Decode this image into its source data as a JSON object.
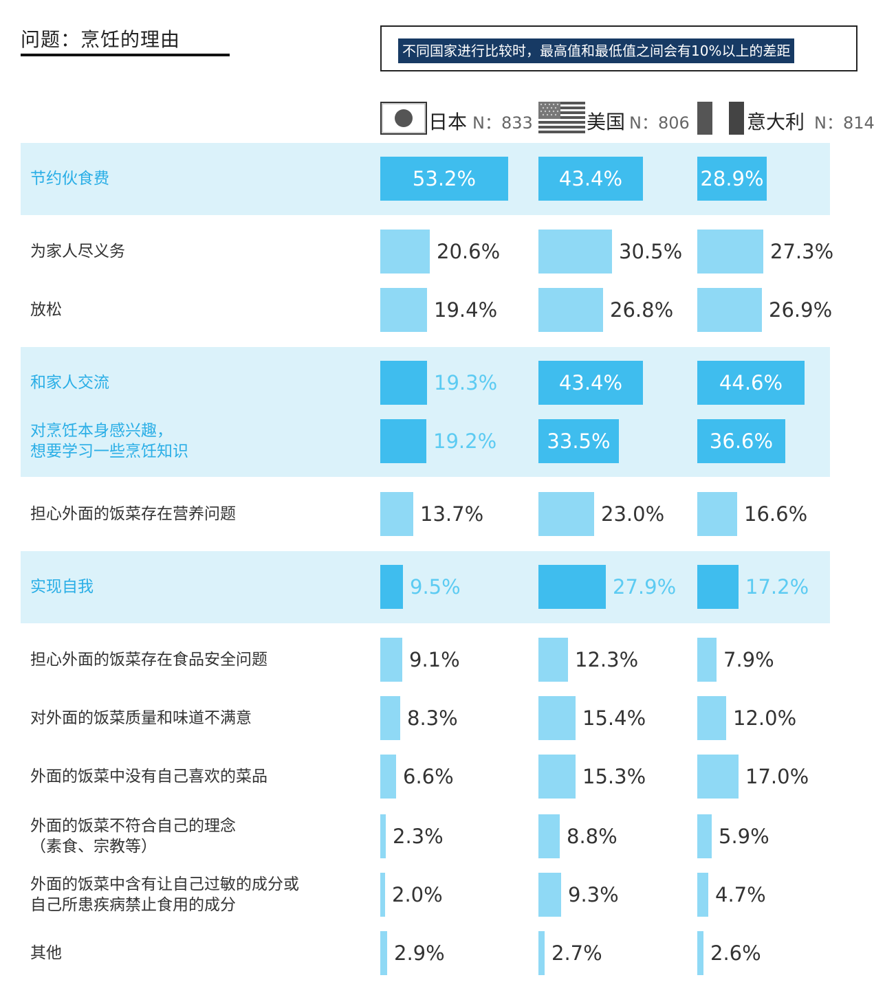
{
  "title": "问题：烹饪的理由",
  "note": "不同国家进行比较时，最高值和最低值之间会有10%以上的差距",
  "colors": {
    "highlight_band": "#dbf2fa",
    "bar_normal": "#8fd9f5",
    "bar_highlight": "#3fbdee",
    "note_bg": "#173a64",
    "highlight_text": "#2aaee6"
  },
  "legend": [
    {
      "name": "日本",
      "n": "N：833",
      "flag_icon": "japan-flag-icon"
    },
    {
      "name": "美国",
      "n": "N：806",
      "flag_icon": "usa-flag-icon"
    },
    {
      "name": "意大利",
      "n": "N：814",
      "flag_icon": "italy-flag-icon"
    }
  ],
  "chart_data": {
    "type": "bar",
    "orientation": "horizontal",
    "title": "问题：烹饪的理由",
    "unit": "%",
    "series_names": [
      "日本",
      "美国",
      "意大利"
    ],
    "rows": [
      {
        "label": "节约伙食费",
        "highlight": true,
        "values": [
          53.2,
          43.4,
          28.9
        ],
        "value_labels": [
          "53.2%",
          "43.4%",
          "28.9%"
        ]
      },
      {
        "label": "为家人尽义务",
        "highlight": false,
        "values": [
          20.6,
          30.5,
          27.3
        ],
        "value_labels": [
          "20.6%",
          "30.5%",
          "27.3%"
        ]
      },
      {
        "label": "放松",
        "highlight": false,
        "values": [
          19.4,
          26.8,
          26.9
        ],
        "value_labels": [
          "19.4%",
          "26.8%",
          "26.9%"
        ]
      },
      {
        "label": "和家人交流",
        "highlight": true,
        "values": [
          19.3,
          43.4,
          44.6
        ],
        "value_labels": [
          "19.3%",
          "43.4%",
          "44.6%"
        ]
      },
      {
        "label": "对烹饪本身感兴趣，\n想要学习一些烹饪知识",
        "highlight": true,
        "values": [
          19.2,
          33.5,
          36.6
        ],
        "value_labels": [
          "19.2%",
          "33.5%",
          "36.6%"
        ]
      },
      {
        "label": "担心外面的饭菜存在营养问题",
        "highlight": false,
        "values": [
          13.7,
          23.0,
          16.6
        ],
        "value_labels": [
          "13.7%",
          "23.0%",
          "16.6%"
        ]
      },
      {
        "label": "实现自我",
        "highlight": true,
        "values": [
          9.5,
          27.9,
          17.2
        ],
        "value_labels": [
          "9.5%",
          "27.9%",
          "17.2%"
        ]
      },
      {
        "label": "担心外面的饭菜存在食品安全问题",
        "highlight": false,
        "values": [
          9.1,
          12.3,
          7.9
        ],
        "value_labels": [
          "9.1%",
          "12.3%",
          "7.9%"
        ]
      },
      {
        "label": "对外面的饭菜质量和味道不满意",
        "highlight": false,
        "values": [
          8.3,
          15.4,
          12.0
        ],
        "value_labels": [
          "8.3%",
          "15.4%",
          "12.0%"
        ]
      },
      {
        "label": "外面的饭菜中没有自己喜欢的菜品",
        "highlight": false,
        "values": [
          6.6,
          15.3,
          17.0
        ],
        "value_labels": [
          "6.6%",
          "15.3%",
          "17.0%"
        ]
      },
      {
        "label": "外面的饭菜不符合自己的理念\n（素食、宗教等）",
        "highlight": false,
        "values": [
          2.3,
          8.8,
          5.9
        ],
        "value_labels": [
          "2.3%",
          "8.8%",
          "5.9%"
        ]
      },
      {
        "label": "外面的饭菜中含有让自己过敏的成分或\n自己所患疾病禁止食用的成分",
        "highlight": false,
        "values": [
          2.0,
          9.3,
          4.7
        ],
        "value_labels": [
          "2.0%",
          "9.3%",
          "4.7%"
        ]
      },
      {
        "label": "其他",
        "highlight": false,
        "values": [
          2.9,
          2.7,
          2.6
        ],
        "value_labels": [
          "2.9%",
          "2.7%",
          "2.6%"
        ]
      }
    ]
  }
}
